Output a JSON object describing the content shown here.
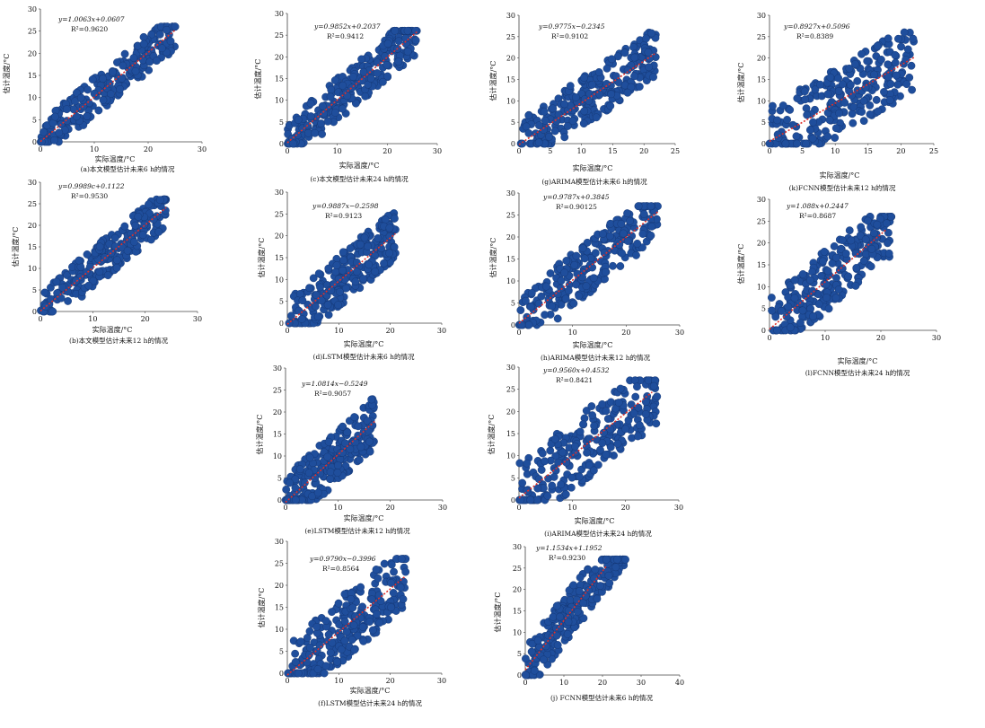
{
  "figure": {
    "panels": [
      {
        "id": "a",
        "caption": "(a)本文模型估计未来6 h的情况",
        "equation": "y=1.0063x+0.0607",
        "r2": "R²=0.9620",
        "xlabel": "实际温度/°C",
        "ylabel": "估计温度/°C",
        "xticks": [
          "0",
          "10",
          "20",
          "30"
        ],
        "yticks": [
          "0",
          "5",
          "10",
          "15",
          "20",
          "25",
          "30"
        ]
      },
      {
        "id": "b",
        "caption": "(b)本文模型估计未来12 h的情况",
        "equation": "y=0.9989c+0.1122",
        "r2": "R²=0.9530",
        "xlabel": "实际温度/°C",
        "ylabel": "估计温度/°C",
        "xticks": [
          "0",
          "10",
          "20",
          "30"
        ],
        "yticks": [
          "0",
          "5",
          "10",
          "15",
          "20",
          "25",
          "30"
        ]
      },
      {
        "id": "c",
        "caption": "(c)本文模型估计未来24 h的情况",
        "equation": "y=0.9852x+0.2037",
        "r2": "R²=0.9412",
        "xlabel": "实际温度/°C",
        "ylabel": "估计温度/°C",
        "xticks": [
          "0",
          "10",
          "20",
          "30"
        ],
        "yticks": [
          "0",
          "5",
          "10",
          "15",
          "20",
          "25",
          "30"
        ]
      },
      {
        "id": "d",
        "caption": "(d)LSTM模型估计未来6 h的情况",
        "equation": "y=0.9887x−0.2598",
        "r2": "R²=0.9123",
        "xlabel": "实际温度/°C",
        "ylabel": "估计温度/°C",
        "xticks": [
          "0",
          "10",
          "20",
          "30"
        ],
        "yticks": [
          "0",
          "5",
          "10",
          "15",
          "20",
          "25",
          "30"
        ]
      },
      {
        "id": "e",
        "caption": "(e)LSTM模型估计未来12 h的情况",
        "equation": "y=1.0814x−0.5249",
        "r2": "R²=0.9057",
        "xlabel": "实际温度/°C",
        "ylabel": "估计温度/°C",
        "xticks": [
          "0",
          "10",
          "20",
          "30"
        ],
        "yticks": [
          "0",
          "5",
          "10",
          "15",
          "20",
          "25",
          "30"
        ]
      },
      {
        "id": "f",
        "caption": "(f)LSTM模型估计未来24 h的情况",
        "equation": "y=0.9790x−0.3996",
        "r2": "R²=0.8564",
        "xlabel": "实际温度/°C",
        "ylabel": "估计温度/°C",
        "xticks": [
          "0",
          "10",
          "20",
          "30"
        ],
        "yticks": [
          "0",
          "5",
          "10",
          "15",
          "20",
          "25",
          "30"
        ]
      },
      {
        "id": "g",
        "caption": "(g)ARIMA模型估计未来6 h的情况",
        "equation": "y=0.9775x−0.2345",
        "r2": "R²=0.9102",
        "xlabel": "实际温度/°C",
        "ylabel": "估计温度/°C",
        "xticks": [
          "0",
          "5",
          "10",
          "15",
          "20",
          "25"
        ],
        "yticks": [
          "0",
          "5",
          "10",
          "15",
          "20",
          "25",
          "30"
        ]
      },
      {
        "id": "h",
        "caption": "(h)ARIMA模型估计未来12 h的情况",
        "equation": "y=0.9787x+0.3845",
        "r2": "R²=0.90125",
        "xlabel": "实际温度/°C",
        "ylabel": "估计温度/°C",
        "xticks": [
          "0",
          "10",
          "20",
          "30"
        ],
        "yticks": [
          "0",
          "5",
          "10",
          "15",
          "20",
          "25",
          "30"
        ]
      },
      {
        "id": "i",
        "caption": "(i)ARIMA模型估计未来24 h的情况",
        "equation": "y=0.9560x+0.4532",
        "r2": "R²=0.8421",
        "xlabel": "实际温度/°C",
        "ylabel": "估计温度/°C",
        "xticks": [
          "0",
          "10",
          "20",
          "30"
        ],
        "yticks": [
          "0",
          "5",
          "10",
          "15",
          "20",
          "25",
          "30"
        ]
      },
      {
        "id": "j",
        "caption": "(j) FCNN模型估计未来6 h的情况",
        "equation": "y=1.1534x+1.1952",
        "r2": "R²=0.9230",
        "xlabel": "",
        "ylabel": "估计温度/°C",
        "xticks": [
          "0",
          "10",
          "20",
          "30",
          "40"
        ],
        "yticks": [
          "0",
          "5",
          "10",
          "15",
          "20",
          "25",
          "30"
        ]
      },
      {
        "id": "k",
        "caption": "(k)FCNN模型估计未来12 h的情况",
        "equation": "y=0.8927x+0.5096",
        "r2": "R²=0.8389",
        "xlabel": "实际温度/°C",
        "ylabel": "估计温度/°C",
        "xticks": [
          "0",
          "5",
          "10",
          "15",
          "20",
          "25"
        ],
        "yticks": [
          "0",
          "5",
          "10",
          "15",
          "20",
          "25",
          "30"
        ]
      },
      {
        "id": "l",
        "caption": "(l)FCNN模型估计未来24 h的情况",
        "equation": "y=1.088x+0.2447",
        "r2": "R²=0.8687",
        "xlabel": "实际温度/°C",
        "ylabel": "估计温度/°C",
        "xticks": [
          "0",
          "10",
          "20",
          "30"
        ],
        "yticks": [
          "0",
          "5",
          "10",
          "15",
          "20",
          "25",
          "30"
        ]
      }
    ]
  },
  "chart_data": [
    {
      "type": "scatter",
      "id": "a",
      "xlim": [
        0,
        30
      ],
      "ylim": [
        0,
        30
      ],
      "x_extent": [
        0,
        25
      ],
      "y_extent": [
        0,
        26
      ],
      "fit": {
        "slope": 1.0063,
        "intercept": 0.0607
      },
      "fit_x_range": [
        0,
        25
      ],
      "r2": 0.962,
      "point_color": "#1f4e9c",
      "fit_color": "#e0302a"
    },
    {
      "type": "scatter",
      "id": "b",
      "xlim": [
        0,
        30
      ],
      "ylim": [
        0,
        30
      ],
      "x_extent": [
        0,
        24
      ],
      "y_extent": [
        0,
        26
      ],
      "fit": {
        "slope": 0.9989,
        "intercept": 0.1122
      },
      "fit_x_range": [
        0,
        24
      ],
      "r2": 0.953,
      "point_color": "#1f4e9c",
      "fit_color": "#e0302a"
    },
    {
      "type": "scatter",
      "id": "c",
      "xlim": [
        0,
        30
      ],
      "ylim": [
        0,
        30
      ],
      "x_extent": [
        0,
        26
      ],
      "y_extent": [
        0,
        26
      ],
      "fit": {
        "slope": 0.9852,
        "intercept": 0.2037
      },
      "fit_x_range": [
        0,
        26
      ],
      "r2": 0.9412,
      "point_color": "#1f4e9c",
      "fit_color": "#e0302a"
    },
    {
      "type": "scatter",
      "id": "d",
      "xlim": [
        0,
        30
      ],
      "ylim": [
        0,
        30
      ],
      "x_extent": [
        0,
        21
      ],
      "y_extent": [
        0,
        26
      ],
      "fit": {
        "slope": 0.9887,
        "intercept": -0.2598
      },
      "fit_x_range": [
        0,
        21
      ],
      "r2": 0.9123,
      "point_color": "#1f4e9c",
      "fit_color": "#e0302a"
    },
    {
      "type": "scatter",
      "id": "e",
      "xlim": [
        0,
        30
      ],
      "ylim": [
        0,
        30
      ],
      "x_extent": [
        0,
        17
      ],
      "y_extent": [
        0,
        27
      ],
      "fit": {
        "slope": 1.0814,
        "intercept": -0.5249
      },
      "fit_x_range": [
        0,
        17
      ],
      "r2": 0.9057,
      "point_color": "#1f4e9c",
      "fit_color": "#e0302a"
    },
    {
      "type": "scatter",
      "id": "f",
      "xlim": [
        0,
        30
      ],
      "ylim": [
        0,
        30
      ],
      "x_extent": [
        0,
        23
      ],
      "y_extent": [
        0,
        26
      ],
      "fit": {
        "slope": 0.979,
        "intercept": -0.3996
      },
      "fit_x_range": [
        0,
        23
      ],
      "r2": 0.8564,
      "point_color": "#1f4e9c",
      "fit_color": "#e0302a"
    },
    {
      "type": "scatter",
      "id": "g",
      "xlim": [
        0,
        25
      ],
      "ylim": [
        0,
        30
      ],
      "x_extent": [
        0,
        22
      ],
      "y_extent": [
        0,
        26
      ],
      "fit": {
        "slope": 0.9775,
        "intercept": -0.2345
      },
      "fit_x_range": [
        0,
        22
      ],
      "r2": 0.9102,
      "point_color": "#1f4e9c",
      "fit_color": "#e0302a"
    },
    {
      "type": "scatter",
      "id": "h",
      "xlim": [
        0,
        30
      ],
      "ylim": [
        0,
        30
      ],
      "x_extent": [
        0,
        26
      ],
      "y_extent": [
        0,
        27
      ],
      "fit": {
        "slope": 0.9787,
        "intercept": 0.3845
      },
      "fit_x_range": [
        0,
        26
      ],
      "r2": 0.90125,
      "point_color": "#1f4e9c",
      "fit_color": "#e0302a"
    },
    {
      "type": "scatter",
      "id": "i",
      "xlim": [
        0,
        30
      ],
      "ylim": [
        0,
        30
      ],
      "x_extent": [
        0,
        26
      ],
      "y_extent": [
        0,
        27
      ],
      "fit": {
        "slope": 0.956,
        "intercept": 0.4532
      },
      "fit_x_range": [
        0,
        25
      ],
      "r2": 0.8421,
      "point_color": "#1f4e9c",
      "fit_color": "#e0302a"
    },
    {
      "type": "scatter",
      "id": "j",
      "xlim": [
        0,
        40
      ],
      "ylim": [
        0,
        30
      ],
      "x_extent": [
        0,
        26
      ],
      "y_extent": [
        0,
        27
      ],
      "fit": {
        "slope": 1.1534,
        "intercept": 1.1952
      },
      "fit_x_range": [
        0,
        21
      ],
      "r2": 0.923,
      "point_color": "#1f4e9c",
      "fit_color": "#e0302a"
    },
    {
      "type": "scatter",
      "id": "k",
      "xlim": [
        0,
        25
      ],
      "ylim": [
        0,
        30
      ],
      "x_extent": [
        0,
        22
      ],
      "y_extent": [
        0,
        26
      ],
      "fit": {
        "slope": 0.8927,
        "intercept": 0.5096
      },
      "fit_x_range": [
        0,
        22
      ],
      "r2": 0.8389,
      "point_color": "#1f4e9c",
      "fit_color": "#e0302a"
    },
    {
      "type": "scatter",
      "id": "l",
      "xlim": [
        0,
        30
      ],
      "ylim": [
        0,
        30
      ],
      "x_extent": [
        0,
        22
      ],
      "y_extent": [
        0,
        26
      ],
      "fit": {
        "slope": 1.088,
        "intercept": 0.2447
      },
      "fit_x_range": [
        0,
        21
      ],
      "r2": 0.8687,
      "point_color": "#1f4e9c",
      "fit_color": "#e0302a"
    }
  ]
}
